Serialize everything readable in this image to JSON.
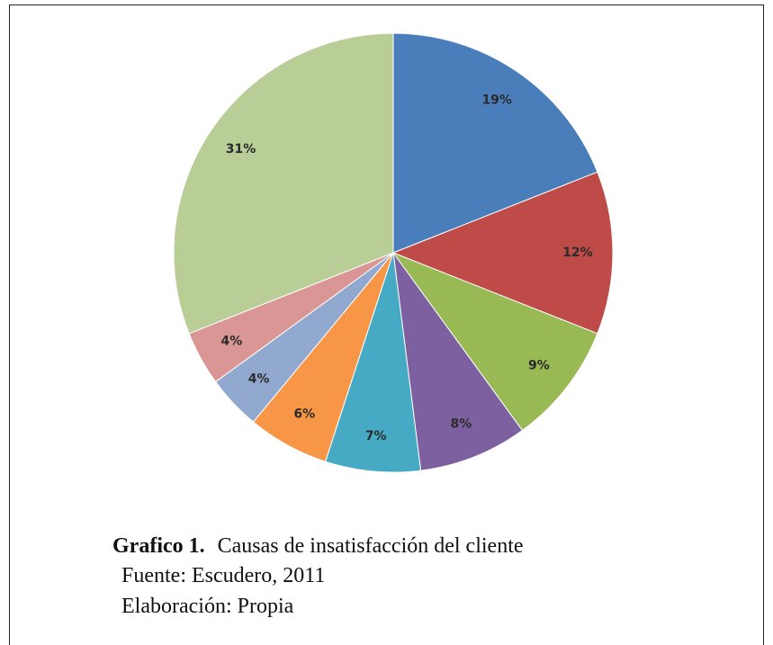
{
  "chart_data": {
    "type": "pie",
    "values": [
      19,
      12,
      9,
      8,
      7,
      6,
      4,
      4,
      31
    ],
    "value_labels": [
      "19%",
      "12%",
      "9%",
      "8%",
      "7%",
      "6%",
      "4%",
      "4%",
      "31%"
    ],
    "colors": [
      "#4a7ebb",
      "#be4b48",
      "#98b954",
      "#7d60a0",
      "#46aac5",
      "#f79646",
      "#92a9cf",
      "#d99694",
      "#b9cd96"
    ],
    "figure_label": "Grafico 1.",
    "title": "Causas de insatisfacción del cliente",
    "source": "Fuente: Escudero, 2011",
    "credit": "Elaboración: Propia"
  }
}
